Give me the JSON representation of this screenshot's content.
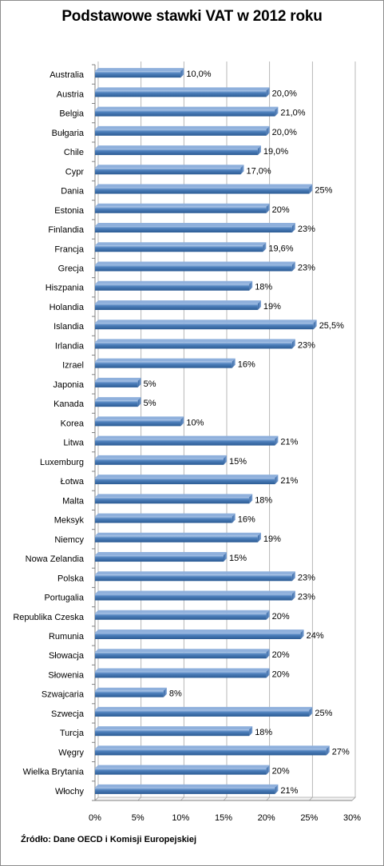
{
  "chart_data": {
    "type": "bar",
    "orientation": "horizontal",
    "title": "Podstawowe stawki VAT w 2012 roku",
    "source": "Źródło: Dane OECD i Komisji Europejskiej",
    "xlim": [
      0,
      30
    ],
    "x_ticks": [
      0,
      5,
      10,
      15,
      20,
      25,
      30
    ],
    "x_tick_labels": [
      "0%",
      "5%",
      "10%",
      "15%",
      "20%",
      "25%",
      "30%"
    ],
    "grid": "vertical",
    "bar_color": "#4f81bd",
    "categories": [
      "Australia",
      "Austria",
      "Belgia",
      "Bułgaria",
      "Chile",
      "Cypr",
      "Dania",
      "Estonia",
      "Finlandia",
      "Francja",
      "Grecja",
      "Hiszpania",
      "Holandia",
      "Islandia",
      "Irlandia",
      "Izrael",
      "Japonia",
      "Kanada",
      "Korea",
      "Litwa",
      "Luxemburg",
      "Łotwa",
      "Malta",
      "Meksyk",
      "Niemcy",
      "Nowa Zelandia",
      "Polska",
      "Portugalia",
      "Republika Czeska",
      "Rumunia",
      "Słowacja",
      "Słowenia",
      "Szwajcaria",
      "Szwecja",
      "Turcja",
      "Węgry",
      "Wielka Brytania",
      "Włochy"
    ],
    "values": [
      10,
      20,
      21,
      20,
      19,
      17,
      25,
      20,
      23,
      19.6,
      23,
      18,
      19,
      25.5,
      23,
      16,
      5,
      5,
      10,
      21,
      15,
      21,
      18,
      16,
      19,
      15,
      23,
      23,
      20,
      24,
      20,
      20,
      8,
      25,
      18,
      27,
      20,
      21
    ],
    "value_labels": [
      "10,0%",
      "20,0%",
      "21,0%",
      "20,0%",
      "19,0%",
      "17,0%",
      "25%",
      "20%",
      "23%",
      "19,6%",
      "23%",
      "18%",
      "19%",
      "25,5%",
      "23%",
      "16%",
      "5%",
      "5%",
      "10%",
      "21%",
      "15%",
      "21%",
      "18%",
      "16%",
      "19%",
      "15%",
      "23%",
      "23%",
      "20%",
      "24%",
      "20%",
      "20%",
      "8%",
      "25%",
      "18%",
      "27%",
      "20%",
      "21%"
    ]
  }
}
